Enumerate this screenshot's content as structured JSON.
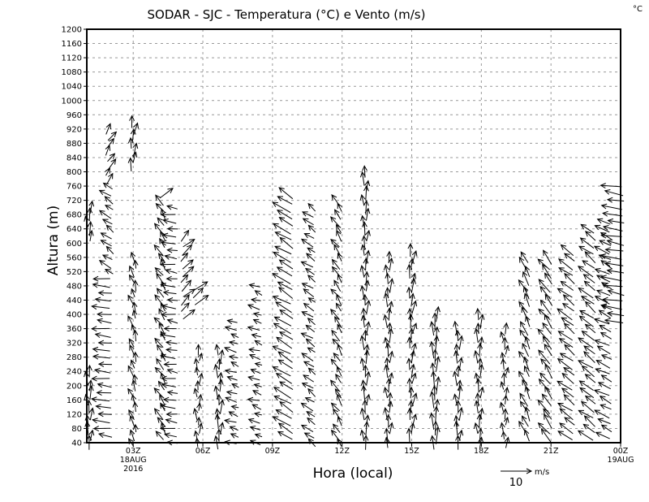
{
  "chart_data": {
    "type": "vector",
    "title": "SODAR - SJC - Temperatura (°C) e Vento (m/s)",
    "corner_label": "°C",
    "xlabel": "Hora (local)",
    "ylabel": "Altura (m)",
    "xlim": [
      1,
      24
    ],
    "ylim": [
      40,
      1200
    ],
    "ytick_step": 40,
    "grid": true,
    "xticks": [
      {
        "t": 3,
        "lines": [
          "03Z",
          "18AUG",
          "2016"
        ]
      },
      {
        "t": 6,
        "lines": [
          "06Z"
        ]
      },
      {
        "t": 9,
        "lines": [
          "09Z"
        ]
      },
      {
        "t": 12,
        "lines": [
          "12Z"
        ]
      },
      {
        "t": 15,
        "lines": [
          "15Z"
        ]
      },
      {
        "t": 18,
        "lines": [
          "18Z"
        ]
      },
      {
        "t": 21,
        "lines": [
          "21Z"
        ]
      },
      {
        "t": 24,
        "lines": [
          "00Z",
          "19AUG"
        ]
      }
    ],
    "reference_vector": {
      "value": "10",
      "units": "m/s"
    },
    "height_step": 20,
    "segments": [
      {
        "t": 1.1,
        "hmin": 40,
        "hmax": 240,
        "u": 0,
        "v": 4
      },
      {
        "t": 1.1,
        "hmin": 620,
        "hmax": 710,
        "u": 0,
        "v": 4
      },
      {
        "t": 1.7,
        "hmin": 60,
        "hmax": 500,
        "u": -5,
        "v": 0.5
      },
      {
        "t": 1.9,
        "hmin": 520,
        "hmax": 760,
        "u": -3,
        "v": 2
      },
      {
        "t": 2.0,
        "hmin": 780,
        "hmax": 930,
        "u": 2,
        "v": 3
      },
      {
        "t": 3.0,
        "hmin": 40,
        "hmax": 560,
        "u": -1,
        "v": 3
      },
      {
        "t": 3.0,
        "hmin": 820,
        "hmax": 950,
        "u": 0.5,
        "v": 4
      },
      {
        "t": 4.2,
        "hmin": 60,
        "hmax": 720,
        "u": -2,
        "v": 3
      },
      {
        "t": 4.4,
        "hmin": 740,
        "hmax": 750,
        "u": 4,
        "v": 3
      },
      {
        "t": 4.6,
        "hmin": 40,
        "hmax": 710,
        "u": -4,
        "v": 0.5
      },
      {
        "t": 5.3,
        "hmin": 400,
        "hmax": 620,
        "u": 3,
        "v": 3
      },
      {
        "t": 5.9,
        "hmin": 440,
        "hmax": 480,
        "u": 4,
        "v": 3
      },
      {
        "t": 5.8,
        "hmin": 40,
        "hmax": 300,
        "u": 0,
        "v": 3
      },
      {
        "t": 6.7,
        "hmin": 40,
        "hmax": 300,
        "u": 0,
        "v": 4
      },
      {
        "t": 7.3,
        "hmin": 40,
        "hmax": 390,
        "u": -3,
        "v": 1
      },
      {
        "t": 8.3,
        "hmin": 40,
        "hmax": 490,
        "u": -3,
        "v": 1
      },
      {
        "t": 9.5,
        "hmin": 60,
        "hmax": 740,
        "u": -5,
        "v": 3
      },
      {
        "t": 10.6,
        "hmin": 40,
        "hmax": 700,
        "u": -3,
        "v": 2
      },
      {
        "t": 11.8,
        "hmin": 40,
        "hmax": 730,
        "u": -2,
        "v": 3
      },
      {
        "t": 13.0,
        "hmin": 40,
        "hmax": 810,
        "u": 0,
        "v": 4
      },
      {
        "t": 14.0,
        "hmin": 40,
        "hmax": 570,
        "u": 0,
        "v": 4
      },
      {
        "t": 15.0,
        "hmin": 60,
        "hmax": 590,
        "u": 0.5,
        "v": 4
      },
      {
        "t": 16.0,
        "hmin": 40,
        "hmax": 400,
        "u": 0,
        "v": 5
      },
      {
        "t": 17.0,
        "hmin": 40,
        "hmax": 360,
        "u": 0,
        "v": 4
      },
      {
        "t": 17.9,
        "hmin": 40,
        "hmax": 410,
        "u": 0,
        "v": 4
      },
      {
        "t": 19.0,
        "hmin": 40,
        "hmax": 370,
        "u": 0,
        "v": 3
      },
      {
        "t": 19.9,
        "hmin": 60,
        "hmax": 560,
        "u": -2,
        "v": 4
      },
      {
        "t": 20.8,
        "hmin": 60,
        "hmax": 570,
        "u": -3,
        "v": 4
      },
      {
        "t": 21.7,
        "hmin": 60,
        "hmax": 580,
        "u": -4,
        "v": 3
      },
      {
        "t": 22.6,
        "hmin": 60,
        "hmax": 650,
        "u": -4,
        "v": 3
      },
      {
        "t": 23.3,
        "hmin": 60,
        "hmax": 660,
        "u": -4,
        "v": 2
      },
      {
        "t": 23.7,
        "hmin": 380,
        "hmax": 770,
        "u": -6,
        "v": 1
      }
    ]
  }
}
